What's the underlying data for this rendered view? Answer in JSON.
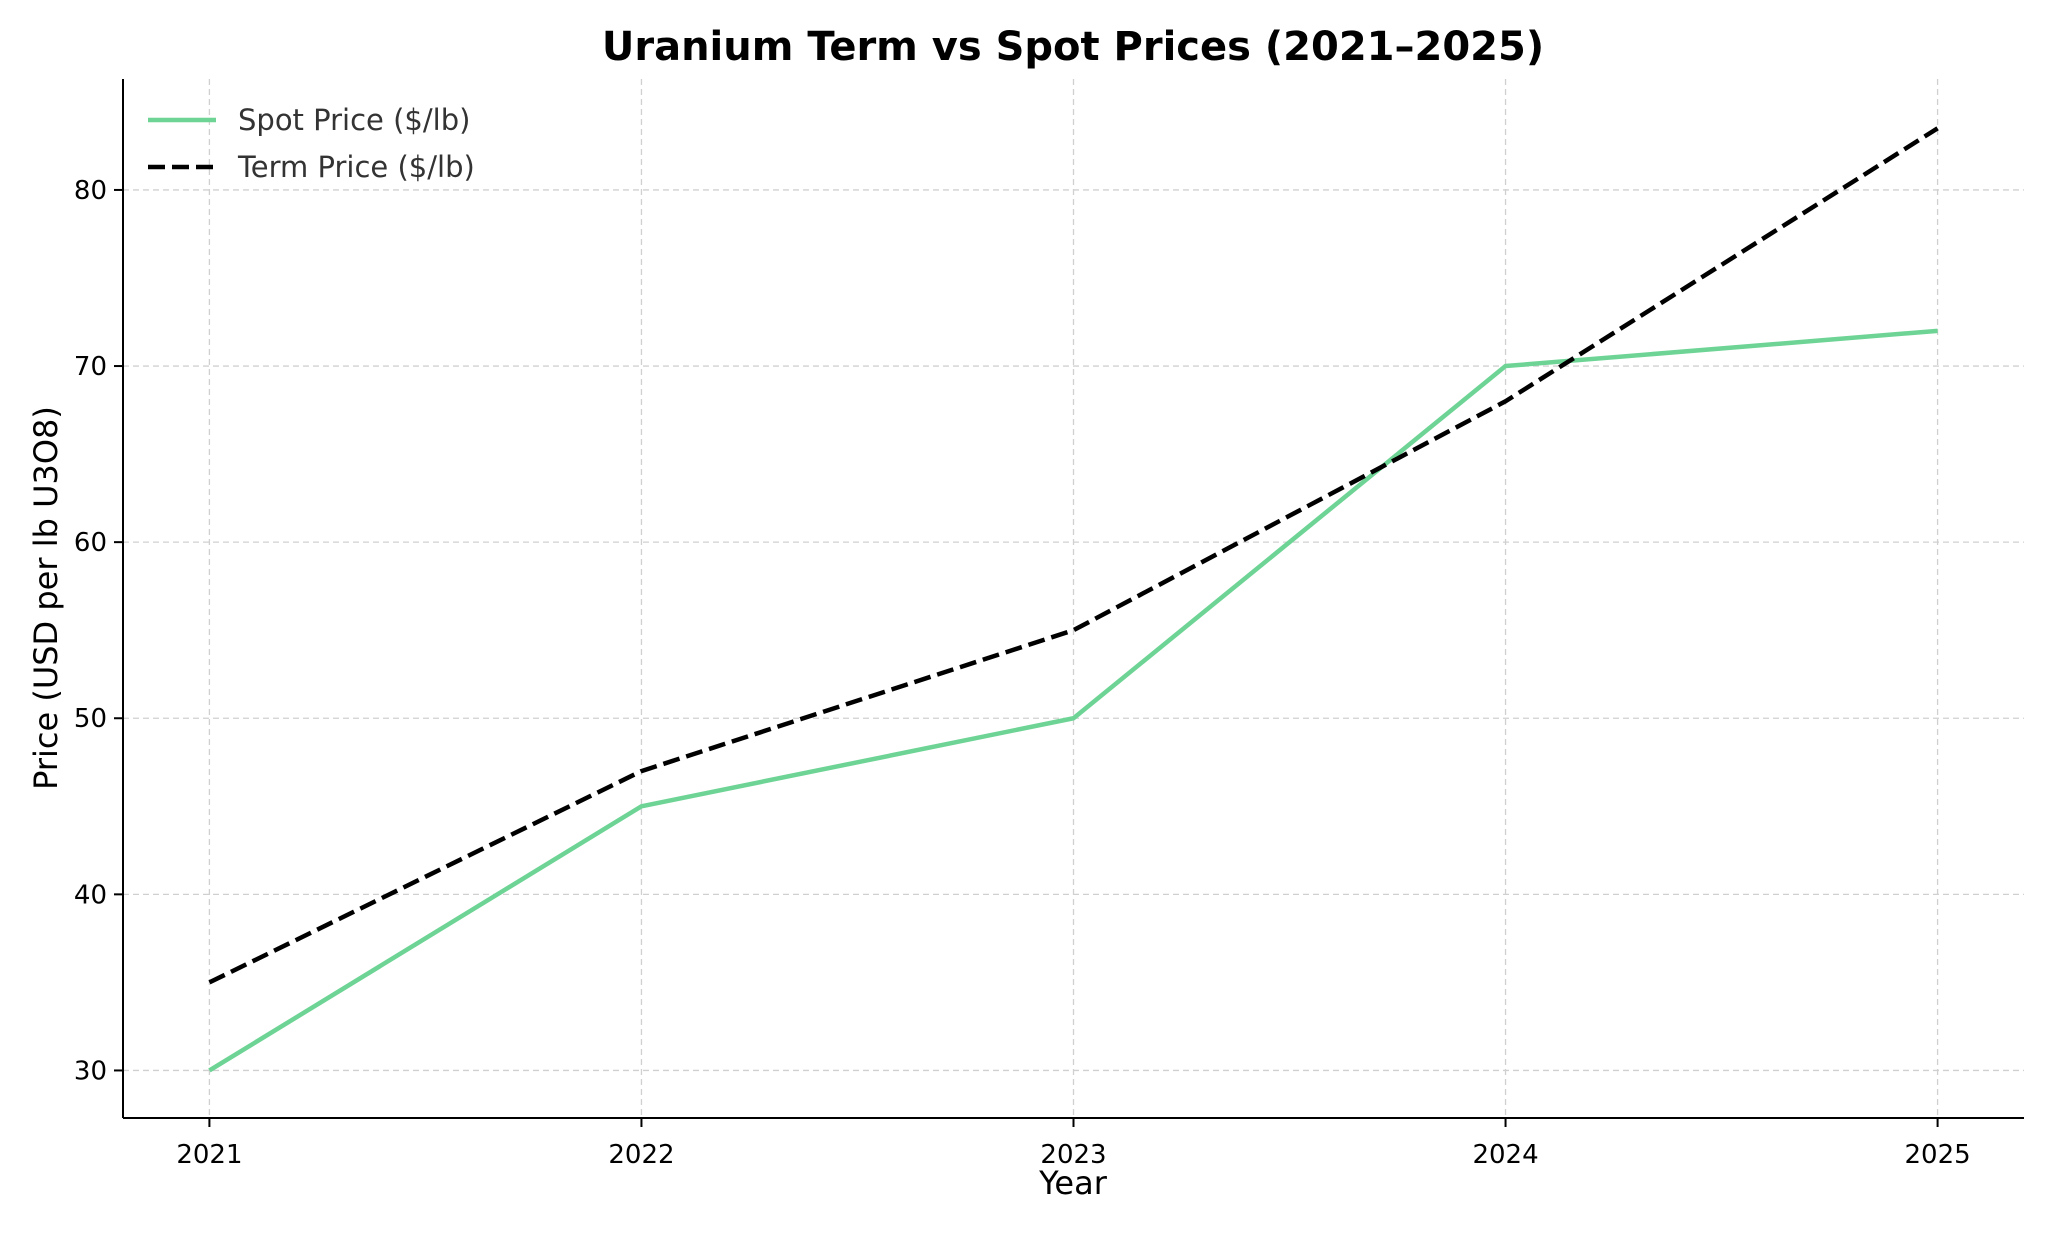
{
  "chart_data": {
    "type": "line",
    "title": "Uranium Term vs Spot Prices (2021–2025)",
    "xlabel": "Year",
    "ylabel": "Price (USD per lb U3O8)",
    "x": [
      "2021",
      "2022",
      "2023",
      "2024",
      "2025"
    ],
    "x_values": [
      2021,
      2022,
      2023,
      2024,
      2025
    ],
    "xlim": [
      2020.8,
      2025.2
    ],
    "ylim": [
      27.3,
      86.3
    ],
    "yticks": [
      30,
      40,
      50,
      60,
      70,
      80
    ],
    "ytick_labels": [
      "30",
      "40",
      "50",
      "60",
      "70",
      "80"
    ],
    "grid": true,
    "legend_position": "top-left",
    "series": [
      {
        "name": "Spot Price ($/lb)",
        "values": [
          30,
          45,
          50,
          70,
          72
        ],
        "color": "#6dd495",
        "style": "solid"
      },
      {
        "name": "Term Price ($/lb)",
        "values": [
          35,
          47,
          55,
          68,
          83.5
        ],
        "color": "#000000",
        "style": "dashed"
      }
    ]
  }
}
